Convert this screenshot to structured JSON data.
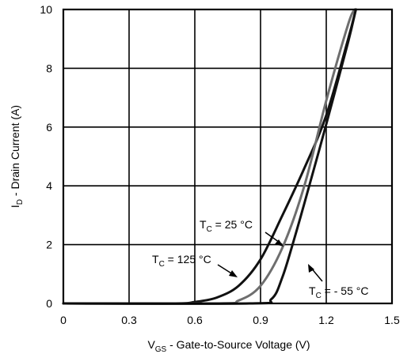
{
  "chart_data": {
    "type": "line",
    "title": "",
    "xlabel": {
      "main": "V",
      "sub": "GS",
      "rest": " - Gate-to-Source Voltage (V)"
    },
    "ylabel": {
      "main": "I",
      "sub": "D",
      "rest": " - Drain Current (A)"
    },
    "xlim": [
      0,
      1.5
    ],
    "ylim": [
      0,
      10
    ],
    "x_ticks": [
      "0",
      "0.3",
      "0.6",
      "0.9",
      "1.2",
      "1.5"
    ],
    "y_ticks": [
      "0",
      "2",
      "4",
      "6",
      "8",
      "10"
    ],
    "grid": true,
    "series": [
      {
        "name": "TC = 125 °C",
        "color": "#111111",
        "points": [
          [
            0.0,
            0.0
          ],
          [
            0.5,
            0.0
          ],
          [
            0.6,
            0.05
          ],
          [
            0.7,
            0.2
          ],
          [
            0.8,
            0.6
          ],
          [
            0.9,
            1.5
          ],
          [
            1.0,
            3.0
          ],
          [
            1.1,
            4.6
          ],
          [
            1.2,
            6.4
          ],
          [
            1.3,
            9.0
          ],
          [
            1.335,
            10.0
          ]
        ]
      },
      {
        "name": "TC = 25 °C",
        "color": "#6e6e6e",
        "points": [
          [
            0.0,
            0.0
          ],
          [
            0.7,
            0.0
          ],
          [
            0.8,
            0.1
          ],
          [
            0.9,
            0.6
          ],
          [
            1.0,
            1.9
          ],
          [
            1.1,
            4.0
          ],
          [
            1.2,
            6.9
          ],
          [
            1.3,
            9.5
          ],
          [
            1.33,
            10.0
          ]
        ]
      },
      {
        "name": "TC = - 55 °C",
        "color": "#111111",
        "points": [
          [
            0.0,
            0.0
          ],
          [
            0.85,
            0.0
          ],
          [
            0.95,
            0.15
          ],
          [
            1.0,
            0.9
          ],
          [
            1.05,
            2.1
          ],
          [
            1.1,
            3.4
          ],
          [
            1.2,
            6.1
          ],
          [
            1.3,
            8.9
          ],
          [
            1.335,
            10.0
          ]
        ]
      }
    ],
    "annotations": [
      {
        "main": "T",
        "sub": "C",
        "rest": " = 25 °C"
      },
      {
        "main": "T",
        "sub": "C",
        "rest": " = 125 °C"
      },
      {
        "main": "T",
        "sub": "C",
        "rest": " = - 55 °C"
      }
    ]
  }
}
